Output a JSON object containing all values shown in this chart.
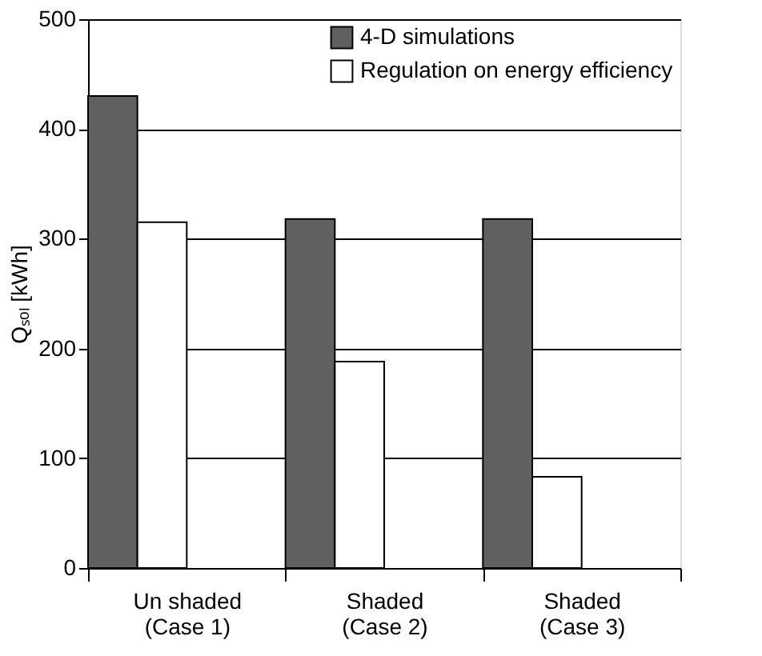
{
  "chart_data": {
    "type": "bar",
    "ylabel": "Qₛₒₗ [kWh]",
    "categories": [
      "Un shaded\n(Case 1)",
      "Shaded\n(Case 2)",
      "Shaded\n(Case 3)"
    ],
    "series": [
      {
        "name": "4-D simulations",
        "color": "#606060",
        "values": [
          430,
          318,
          318
        ]
      },
      {
        "name": "Regulation on energy efficiency",
        "color": "#ffffff",
        "values": [
          315,
          188,
          83
        ]
      }
    ],
    "ylim": [
      0,
      500
    ],
    "yticks": [
      0,
      100,
      200,
      300,
      400,
      500
    ],
    "grid": "y",
    "legend": "top right"
  }
}
